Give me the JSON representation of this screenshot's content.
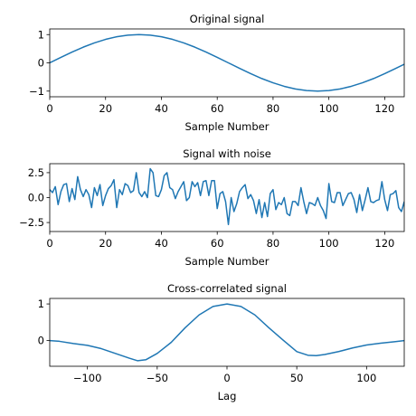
{
  "colors": {
    "line": "#1f77b4",
    "axes": "#000000",
    "background": "#ffffff"
  },
  "chart_data": [
    {
      "type": "line",
      "title": "Original signal",
      "xlabel": "Sample Number",
      "ylabel": "",
      "xlim": [
        0,
        127
      ],
      "ylim": [
        -1.2,
        1.2
      ],
      "xticks": [
        0,
        20,
        40,
        60,
        80,
        100,
        120
      ],
      "yticks": [
        -1,
        0,
        1
      ],
      "grid": false,
      "series": [
        {
          "x": [
            0,
            4,
            8,
            12,
            16,
            20,
            24,
            28,
            32,
            36,
            40,
            44,
            48,
            52,
            56,
            60,
            64,
            68,
            72,
            76,
            80,
            84,
            88,
            92,
            96,
            100,
            104,
            108,
            112,
            116,
            120,
            124,
            127
          ],
          "values": [
            0,
            0.195,
            0.383,
            0.556,
            0.707,
            0.831,
            0.924,
            0.981,
            1.0,
            0.981,
            0.924,
            0.831,
            0.707,
            0.556,
            0.383,
            0.195,
            0,
            -0.195,
            -0.383,
            -0.556,
            -0.707,
            -0.831,
            -0.924,
            -0.981,
            -1.0,
            -0.981,
            -0.924,
            -0.831,
            -0.707,
            -0.556,
            -0.383,
            -0.195,
            -0.049
          ]
        }
      ]
    },
    {
      "type": "line",
      "title": "Signal with noise",
      "xlabel": "Sample Number",
      "ylabel": "",
      "xlim": [
        0,
        127
      ],
      "ylim": [
        -3.4,
        3.4
      ],
      "xticks": [
        0,
        20,
        40,
        60,
        80,
        100,
        120
      ],
      "yticks": [
        -2.5,
        0.0,
        2.5
      ],
      "grid": false,
      "series": [
        {
          "x": [
            0,
            1,
            2,
            3,
            4,
            5,
            6,
            7,
            8,
            9,
            10,
            11,
            12,
            13,
            14,
            15,
            16,
            17,
            18,
            19,
            20,
            21,
            22,
            23,
            24,
            25,
            26,
            27,
            28,
            29,
            30,
            31,
            32,
            33,
            34,
            35,
            36,
            37,
            38,
            39,
            40,
            41,
            42,
            43,
            44,
            45,
            46,
            47,
            48,
            49,
            50,
            51,
            52,
            53,
            54,
            55,
            56,
            57,
            58,
            59,
            60,
            61,
            62,
            63,
            64,
            65,
            66,
            67,
            68,
            69,
            70,
            71,
            72,
            73,
            74,
            75,
            76,
            77,
            78,
            79,
            80,
            81,
            82,
            83,
            84,
            85,
            86,
            87,
            88,
            89,
            90,
            91,
            92,
            93,
            94,
            95,
            96,
            97,
            98,
            99,
            100,
            101,
            102,
            103,
            104,
            105,
            106,
            107,
            108,
            109,
            110,
            111,
            112,
            113,
            114,
            115,
            116,
            117,
            118,
            119,
            120,
            121,
            122,
            123,
            124,
            125,
            126,
            127
          ],
          "values": [
            0.8,
            0.5,
            1.1,
            -0.7,
            0.6,
            1.3,
            1.4,
            -0.4,
            0.9,
            -0.2,
            2.1,
            0.8,
            0.1,
            0.8,
            0.3,
            -1.0,
            1.0,
            0.2,
            1.3,
            -0.8,
            0.2,
            0.9,
            1.2,
            1.8,
            -1.0,
            0.8,
            0.3,
            1.4,
            1.2,
            0.5,
            0.7,
            2.5,
            0.5,
            0.1,
            0.6,
            0.0,
            2.9,
            2.5,
            0.2,
            0.1,
            0.8,
            2.2,
            2.5,
            1.0,
            0.8,
            -0.1,
            0.6,
            1.1,
            1.6,
            -0.3,
            0.0,
            1.6,
            1.1,
            1.5,
            0.2,
            1.6,
            1.7,
            0.2,
            1.7,
            1.7,
            -1.1,
            0.4,
            0.6,
            -0.4,
            -2.7,
            0.0,
            -1.4,
            -0.6,
            0.6,
            1.0,
            1.3,
            -0.1,
            0.3,
            -0.3,
            -1.6,
            -0.2,
            -2.0,
            -0.5,
            -1.9,
            0.4,
            0.8,
            -1.2,
            -0.5,
            -0.7,
            0.0,
            -1.6,
            -1.8,
            -0.4,
            -0.4,
            -0.8,
            1.0,
            -0.4,
            -1.6,
            -0.5,
            -0.6,
            -0.8,
            0.0,
            -0.8,
            -1.3,
            -2.1,
            1.4,
            -0.4,
            -0.5,
            0.5,
            0.5,
            -0.8,
            -0.2,
            0.4,
            0.5,
            -0.2,
            -1.5,
            0.3,
            -1.3,
            -0.2,
            1.0,
            -0.4,
            -0.5,
            -0.3,
            -0.2,
            1.6,
            -0.2,
            -1.3,
            0.3,
            0.4,
            0.7,
            -1.0,
            -1.4,
            -0.4
          ]
        }
      ]
    },
    {
      "type": "line",
      "title": "Cross-correlated signal",
      "xlabel": "Lag",
      "ylabel": "",
      "xlim": [
        -127,
        127
      ],
      "ylim": [
        -0.7,
        1.15
      ],
      "xticks": [
        -100,
        -50,
        0,
        50,
        100
      ],
      "yticks": [
        0,
        1
      ],
      "grid": false,
      "series": [
        {
          "x": [
            -127,
            -120,
            -110,
            -100,
            -90,
            -80,
            -70,
            -64,
            -58,
            -50,
            -40,
            -30,
            -20,
            -10,
            0,
            10,
            20,
            30,
            40,
            50,
            58,
            64,
            70,
            80,
            90,
            100,
            110,
            120,
            127
          ],
          "values": [
            0.0,
            -0.02,
            -0.08,
            -0.13,
            -0.22,
            -0.35,
            -0.48,
            -0.55,
            -0.52,
            -0.35,
            -0.05,
            0.35,
            0.7,
            0.93,
            1.0,
            0.93,
            0.7,
            0.35,
            0.02,
            -0.3,
            -0.4,
            -0.41,
            -0.38,
            -0.3,
            -0.2,
            -0.12,
            -0.07,
            -0.03,
            0.0
          ]
        }
      ]
    }
  ]
}
